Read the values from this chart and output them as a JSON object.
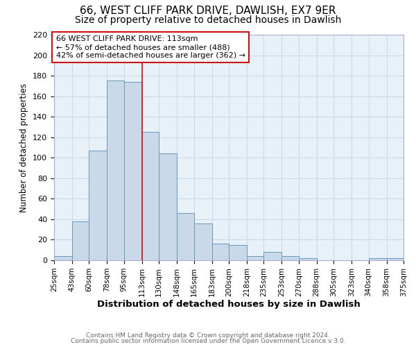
{
  "title": "66, WEST CLIFF PARK DRIVE, DAWLISH, EX7 9ER",
  "subtitle": "Size of property relative to detached houses in Dawlish",
  "xlabel": "Distribution of detached houses by size in Dawlish",
  "ylabel": "Number of detached properties",
  "bar_edges": [
    25,
    43,
    60,
    78,
    95,
    113,
    130,
    148,
    165,
    183,
    200,
    218,
    235,
    253,
    270,
    288,
    305,
    323,
    340,
    358,
    375
  ],
  "bar_heights": [
    4,
    38,
    107,
    175,
    174,
    125,
    104,
    46,
    36,
    16,
    15,
    4,
    8,
    4,
    2,
    0,
    0,
    0,
    2,
    2,
    0
  ],
  "bar_color": "#c9d9ea",
  "bar_edge_color": "#6699bb",
  "reference_line_x": 113,
  "reference_line_color": "#cc1111",
  "ylim": [
    0,
    220
  ],
  "yticks": [
    0,
    20,
    40,
    60,
    80,
    100,
    120,
    140,
    160,
    180,
    200,
    220
  ],
  "annotation_line1": "66 WEST CLIFF PARK DRIVE: 113sqm",
  "annotation_line2": "← 57% of detached houses are smaller (488)",
  "annotation_line3": "42% of semi-detached houses are larger (362) →",
  "grid_color": "#c8d8ea",
  "background_color": "#e8f0f8",
  "footer_line1": "Contains HM Land Registry data © Crown copyright and database right 2024.",
  "footer_line2": "Contains public sector information licensed under the Open Government Licence v 3.0.",
  "title_fontsize": 11,
  "subtitle_fontsize": 10,
  "ylabel_fontsize": 8.5,
  "xlabel_fontsize": 9.5
}
